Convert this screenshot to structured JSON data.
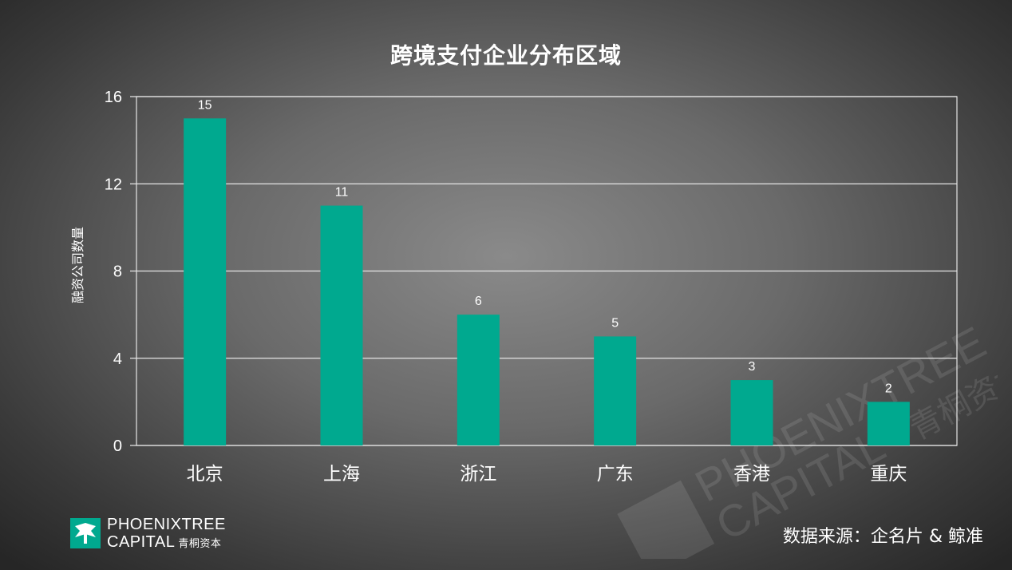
{
  "chart_data": {
    "type": "bar",
    "title": "跨境支付企业分布区域",
    "ylabel": "融资公司数量",
    "xlabel": "",
    "categories": [
      "北京",
      "上海",
      "浙江",
      "广东",
      "香港",
      "重庆"
    ],
    "values": [
      15,
      11,
      6,
      5,
      3,
      2
    ],
    "ylim": [
      0,
      16
    ],
    "yticks": [
      0,
      4,
      8,
      12,
      16
    ],
    "grid": true,
    "bar_color": "#00a98f",
    "data_labels": true
  },
  "source": "数据来源：企名片 & 鲸准",
  "logo": {
    "line1": "PHOENIXTREE",
    "line2": "CAPITAL",
    "cn": "青桐资本"
  },
  "watermark": {
    "line1": "PHOENIXTREE",
    "line2": "CAPITAL",
    "cn": "青桐资本"
  },
  "colors": {
    "bar": "#00a98f",
    "text": "#ffffff",
    "grid": "#e6e6e6"
  }
}
